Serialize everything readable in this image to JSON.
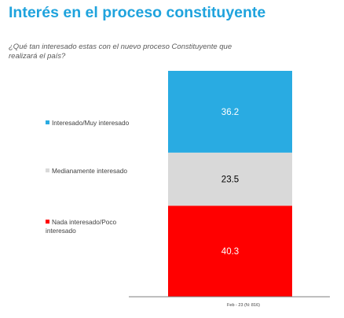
{
  "header": {
    "title": "Interés en el proceso constituyente",
    "subtitle": "¿Qué tan interesado estas con el nuevo proceso Constituyente que realizará el país?"
  },
  "legend": [
    {
      "label": "Interesado/Muy interesado",
      "color": "#29abe2"
    },
    {
      "label": "Medianamente interesado",
      "color": "#d9d9d9"
    },
    {
      "label": "Nada interesado/Poco interesado",
      "color": "#ff0000"
    }
  ],
  "chart_data": {
    "type": "bar",
    "stacked": true,
    "categories": [
      "Feb - 23 (N: 816)"
    ],
    "series": [
      {
        "name": "Nada interesado/Poco interesado",
        "values": [
          40.3
        ],
        "color": "#ff0000",
        "label_color": "#ffffff"
      },
      {
        "name": "Medianamente interesado",
        "values": [
          23.5
        ],
        "color": "#d9d9d9",
        "label_color": "#000000"
      },
      {
        "name": "Interesado/Muy interesado",
        "values": [
          36.2
        ],
        "color": "#29abe2",
        "label_color": "#ffffff"
      }
    ],
    "ylim": [
      0,
      100
    ],
    "grid": false,
    "legend_position": "left"
  }
}
